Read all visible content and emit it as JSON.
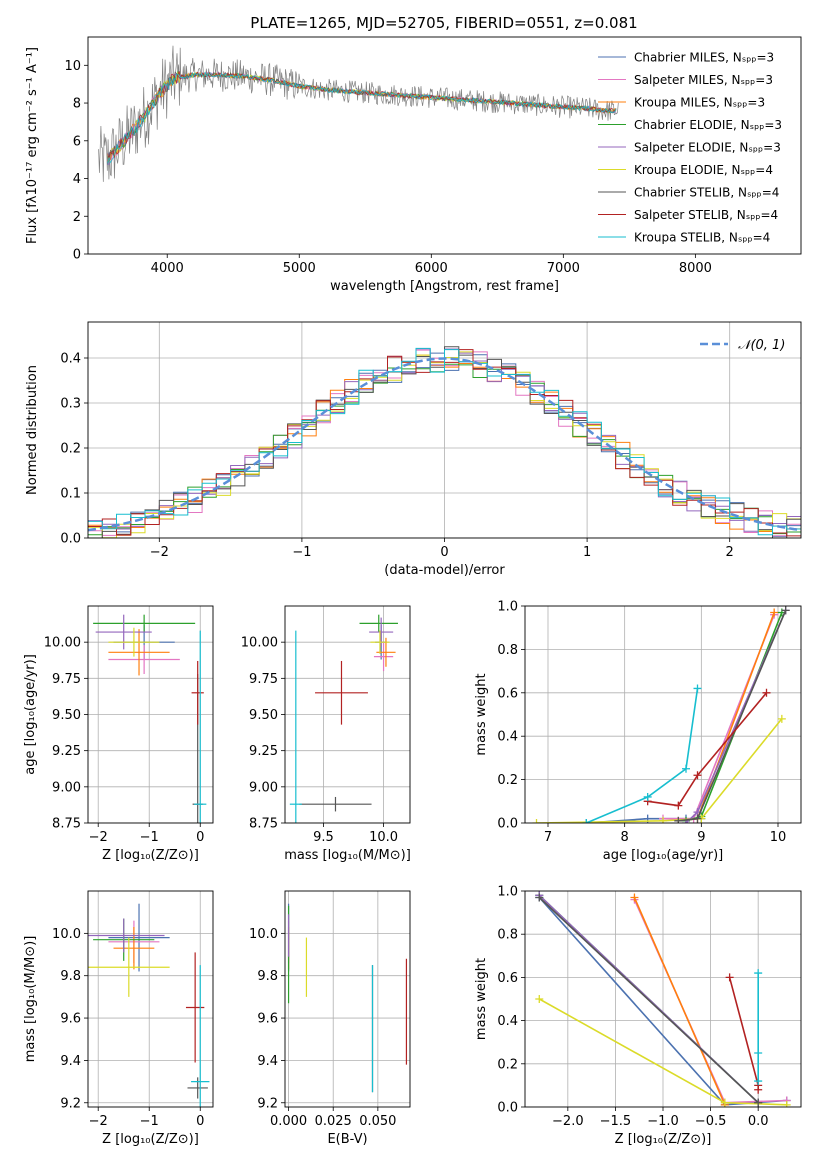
{
  "figure": {
    "title": "PLATE=1265, MJD=52705, FIBERID=0551, z=0.081"
  },
  "chart_data": [
    {
      "id": "spectrum",
      "type": "line",
      "xlabel": "wavelength [Angstrom, rest frame]",
      "ylabel": "Flux [fλ10⁻¹⁷ erg cm⁻² s⁻¹ A⁻¹]",
      "xlim": [
        3400,
        8800
      ],
      "ylim": [
        0,
        11.5
      ],
      "xticks": [
        4000,
        5000,
        6000,
        7000,
        8000
      ],
      "yticks": [
        0,
        2,
        4,
        6,
        8,
        10
      ],
      "grid": false,
      "legend_position": "right",
      "legend": [
        {
          "label": "Chabrier MILES, Nₛₚₚ=3",
          "color": "#4c72b0"
        },
        {
          "label": "Salpeter MILES, Nₛₚₚ=3",
          "color": "#e377c2"
        },
        {
          "label": "Kroupa MILES, Nₛₚₚ=3",
          "color": "#ff7f0e"
        },
        {
          "label": "Chabrier ELODIE, Nₛₚₚ=3",
          "color": "#2ca02c"
        },
        {
          "label": "Salpeter ELODIE, Nₛₚₚ=3",
          "color": "#9467bd"
        },
        {
          "label": "Kroupa ELODIE, Nₛₚₚ=4",
          "color": "#dbdb29"
        },
        {
          "label": "Chabrier STELIB, Nₛₚₚ=4",
          "color": "#555555"
        },
        {
          "label": "Salpeter STELIB, Nₛₚₚ=4",
          "color": "#b22222"
        },
        {
          "label": "Kroupa STELIB, Nₛₚₚ=4",
          "color": "#17becf"
        }
      ],
      "data_color": "#808080",
      "continuum": {
        "x": [
          3550,
          3650,
          3750,
          3850,
          3950,
          4050,
          4200,
          4400,
          4600,
          4800,
          5000,
          5200,
          5400,
          5600,
          5800,
          6000,
          6200,
          6400,
          6600,
          6800,
          7000,
          7200,
          7300,
          7400
        ],
        "y": [
          5.0,
          5.8,
          6.6,
          7.5,
          8.6,
          9.3,
          9.5,
          9.5,
          9.4,
          9.2,
          8.9,
          8.7,
          8.6,
          8.5,
          8.4,
          8.3,
          8.2,
          8.1,
          8.0,
          7.9,
          7.8,
          7.7,
          7.6,
          7.6
        ]
      },
      "data_range": [
        3480,
        7420
      ]
    },
    {
      "id": "residuals",
      "type": "histogram",
      "xlabel": "(data-model)/error",
      "ylabel": "Normed distribution",
      "xlim": [
        -2.5,
        2.5
      ],
      "ylim": [
        0,
        0.48
      ],
      "xticks": [
        -2,
        -1,
        0,
        1,
        2
      ],
      "yticks": [
        0.0,
        0.1,
        0.2,
        0.3,
        0.4
      ],
      "grid": true,
      "legend": [
        {
          "label": "𝒩(0, 1)",
          "color": "#5a8fd8"
        }
      ],
      "reference_curve": "normal pdf, mean 0, sd 1",
      "bin_width": 0.1
    },
    {
      "id": "age_vs_Z",
      "type": "scatter",
      "xlabel": "Z [log₁₀(Z/Z⊙)]",
      "ylabel": "age  [log₁₀(age/yr)]",
      "xlim": [
        -2.2,
        0.25
      ],
      "ylim": [
        8.75,
        10.25
      ],
      "xticks": [
        -2,
        -1,
        0
      ],
      "yticks": [
        8.75,
        9.0,
        9.25,
        9.5,
        9.75,
        10.0
      ],
      "grid": true,
      "points": [
        {
          "color": "#4c72b0",
          "x": -1.1,
          "y": 10.0,
          "xerr": 0.6,
          "yerr": 0.12
        },
        {
          "color": "#e377c2",
          "x": -1.1,
          "y": 9.88,
          "xerr": 0.7,
          "yerr": 0.1
        },
        {
          "color": "#ff7f0e",
          "x": -1.2,
          "y": 9.93,
          "xerr": 0.6,
          "yerr": 0.16
        },
        {
          "color": "#2ca02c",
          "x": -1.1,
          "y": 10.13,
          "xerr": 1.0,
          "yerr": 0.06
        },
        {
          "color": "#9467bd",
          "x": -1.5,
          "y": 10.07,
          "xerr": 0.55,
          "yerr": 0.12
        },
        {
          "color": "#dbdb29",
          "x": -1.3,
          "y": 10.0,
          "xerr": 0.5,
          "yerr": 0.1
        },
        {
          "color": "#555555",
          "x": -0.05,
          "y": 8.88,
          "xerr": 0.1,
          "yerr": 0.9
        },
        {
          "color": "#b22222",
          "x": -0.05,
          "y": 9.65,
          "xerr": 0.12,
          "yerr": 0.22
        },
        {
          "color": "#17becf",
          "x": 0.0,
          "y": 8.88,
          "xerr": 0.12,
          "yerr": 1.2
        }
      ]
    },
    {
      "id": "age_vs_mass",
      "type": "scatter",
      "xlabel": "mass [log₁₀(M/M⊙)]",
      "ylabel": "",
      "xlim": [
        9.18,
        10.22
      ],
      "ylim": [
        8.75,
        10.25
      ],
      "xticks": [
        9.5,
        10.0
      ],
      "yticks": [
        8.75,
        9.0,
        9.25,
        9.5,
        9.75,
        10.0
      ],
      "grid": true,
      "points": [
        {
          "color": "#4c72b0",
          "x": 9.98,
          "y": 10.0,
          "xerr": 0.05,
          "yerr": 0.12
        },
        {
          "color": "#e377c2",
          "x": 10.0,
          "y": 9.9,
          "xerr": 0.08,
          "yerr": 0.1
        },
        {
          "color": "#ff7f0e",
          "x": 10.02,
          "y": 9.93,
          "xerr": 0.08,
          "yerr": 0.1
        },
        {
          "color": "#2ca02c",
          "x": 9.96,
          "y": 10.13,
          "xerr": 0.16,
          "yerr": 0.06
        },
        {
          "color": "#9467bd",
          "x": 9.98,
          "y": 10.07,
          "xerr": 0.1,
          "yerr": 0.1
        },
        {
          "color": "#dbdb29",
          "x": 9.97,
          "y": 10.0,
          "xerr": 0.08,
          "yerr": 0.08
        },
        {
          "color": "#555555",
          "x": 9.6,
          "y": 8.88,
          "xerr": 0.3,
          "yerr": 0.05
        },
        {
          "color": "#b22222",
          "x": 9.65,
          "y": 9.65,
          "xerr": 0.22,
          "yerr": 0.22
        },
        {
          "color": "#17becf",
          "x": 9.27,
          "y": 8.88,
          "xerr": 0.05,
          "yerr": 1.2
        }
      ]
    },
    {
      "id": "mass_weight_vs_age",
      "type": "line",
      "xlabel": "age  [log₁₀(age/yr)]",
      "ylabel": "mass weight",
      "xlim": [
        6.7,
        10.3
      ],
      "ylim": [
        0,
        1.0
      ],
      "xticks": [
        7,
        8,
        9,
        10
      ],
      "yticks": [
        0.0,
        0.2,
        0.4,
        0.6,
        0.8,
        1.0
      ],
      "grid": true,
      "series": [
        {
          "color": "#4c72b0",
          "x": [
            7.5,
            8.3,
            8.8,
            9.0
          ],
          "y": [
            0.0,
            0.02,
            0.02,
            0.02
          ]
        },
        {
          "color": "#e377c2",
          "x": [
            8.5,
            8.9,
            9.95
          ],
          "y": [
            0.02,
            0.02,
            0.96
          ]
        },
        {
          "color": "#ff7f0e",
          "x": [
            8.7,
            8.95,
            9.95
          ],
          "y": [
            0.01,
            0.02,
            0.97
          ]
        },
        {
          "color": "#2ca02c",
          "x": [
            8.8,
            9.0,
            10.05
          ],
          "y": [
            0.01,
            0.03,
            0.97
          ]
        },
        {
          "color": "#9467bd",
          "x": [
            8.8,
            8.95,
            10.1
          ],
          "y": [
            0.0,
            0.05,
            0.98
          ]
        },
        {
          "color": "#dbdb29",
          "x": [
            6.85,
            8.5,
            9.0,
            10.05
          ],
          "y": [
            0.0,
            0.01,
            0.02,
            0.48
          ]
        },
        {
          "color": "#555555",
          "x": [
            8.7,
            8.95,
            10.1
          ],
          "y": [
            0.01,
            0.02,
            0.98
          ]
        },
        {
          "color": "#b22222",
          "x": [
            8.3,
            8.7,
            8.95,
            9.85
          ],
          "y": [
            0.1,
            0.08,
            0.22,
            0.6
          ]
        },
        {
          "color": "#17becf",
          "x": [
            7.5,
            8.3,
            8.8,
            8.95
          ],
          "y": [
            0.0,
            0.12,
            0.25,
            0.62
          ]
        }
      ]
    },
    {
      "id": "mass_vs_Z",
      "type": "scatter",
      "xlabel": "Z [log₁₀(Z/Z⊙)]",
      "ylabel": "mass [log₁₀(M/M⊙)]",
      "xlim": [
        -2.2,
        0.25
      ],
      "ylim": [
        9.18,
        10.2
      ],
      "xticks": [
        -2,
        -1,
        0
      ],
      "yticks": [
        9.2,
        9.4,
        9.6,
        9.8,
        10.0
      ],
      "grid": true,
      "points": [
        {
          "color": "#4c72b0",
          "x": -1.2,
          "y": 9.98,
          "xerr": 0.6,
          "yerr": 0.16
        },
        {
          "color": "#e377c2",
          "x": -1.3,
          "y": 9.96,
          "xerr": 0.5,
          "yerr": 0.1
        },
        {
          "color": "#ff7f0e",
          "x": -1.3,
          "y": 9.93,
          "xerr": 0.4,
          "yerr": 0.1
        },
        {
          "color": "#2ca02c",
          "x": -1.5,
          "y": 9.97,
          "xerr": 0.6,
          "yerr": 0.1
        },
        {
          "color": "#9467bd",
          "x": -1.5,
          "y": 9.99,
          "xerr": 0.8,
          "yerr": 0.08
        },
        {
          "color": "#dbdb29",
          "x": -1.4,
          "y": 9.84,
          "xerr": 0.8,
          "yerr": 0.14
        },
        {
          "color": "#555555",
          "x": -0.05,
          "y": 9.27,
          "xerr": 0.2,
          "yerr": 0.05
        },
        {
          "color": "#b22222",
          "x": -0.1,
          "y": 9.65,
          "xerr": 0.18,
          "yerr": 0.26
        },
        {
          "color": "#17becf",
          "x": 0.0,
          "y": 9.3,
          "xerr": 0.18,
          "yerr": 0.55
        }
      ]
    },
    {
      "id": "mass_vs_EBV",
      "type": "scatter",
      "xlabel": "E(B-V)",
      "ylabel": "",
      "xlim": [
        -0.002,
        0.068
      ],
      "ylim": [
        9.18,
        10.2
      ],
      "xticks": [
        0.0,
        0.025,
        0.05
      ],
      "xticklabels": [
        "0.000",
        "0.025",
        "0.050"
      ],
      "yticks": [
        9.2,
        9.4,
        9.6,
        9.8,
        10.0
      ],
      "grid": true,
      "points": [
        {
          "color": "#4c72b0",
          "x": 0.0,
          "y": 9.98,
          "xerr": 0,
          "yerr": 0.16
        },
        {
          "color": "#e377c2",
          "x": 0.0,
          "y": 9.96,
          "xerr": 0,
          "yerr": 0.1
        },
        {
          "color": "#ff7f0e",
          "x": 0.0,
          "y": 9.93,
          "xerr": 0,
          "yerr": 0.1
        },
        {
          "color": "#2ca02c",
          "x": 0.0,
          "y": 9.9,
          "xerr": 0,
          "yerr": 0.23
        },
        {
          "color": "#9467bd",
          "x": 0.0,
          "y": 9.99,
          "xerr": 0,
          "yerr": 0.1
        },
        {
          "color": "#dbdb29",
          "x": 0.01,
          "y": 9.84,
          "xerr": 0,
          "yerr": 0.14
        },
        {
          "color": "#555555",
          "x": 0.047,
          "y": 9.55,
          "xerr": 0,
          "yerr": 0.3
        },
        {
          "color": "#b22222",
          "x": 0.066,
          "y": 9.63,
          "xerr": 0,
          "yerr": 0.25
        },
        {
          "color": "#17becf",
          "x": 0.047,
          "y": 9.55,
          "xerr": 0,
          "yerr": 0.3
        }
      ]
    },
    {
      "id": "mass_weight_vs_Z",
      "type": "line",
      "xlabel": "Z [log₁₀(Z/Z⊙)]",
      "ylabel": "mass weight",
      "xlim": [
        -2.45,
        0.45
      ],
      "ylim": [
        0,
        1.0
      ],
      "xticks": [
        -2.0,
        -1.5,
        -1.0,
        -0.5,
        0.0
      ],
      "yticks": [
        0.0,
        0.2,
        0.4,
        0.6,
        0.8,
        1.0
      ],
      "grid": true,
      "series": [
        {
          "color": "#4c72b0",
          "x": [
            -2.3,
            -0.35,
            0.3
          ],
          "y": [
            0.97,
            0.01,
            0.03
          ]
        },
        {
          "color": "#e377c2",
          "x": [
            -1.3,
            -0.35,
            0.3
          ],
          "y": [
            0.96,
            0.02,
            0.03
          ]
        },
        {
          "color": "#ff7f0e",
          "x": [
            -1.3,
            -0.35
          ],
          "y": [
            0.97,
            0.01
          ]
        },
        {
          "color": "#2ca02c",
          "x": [
            -2.3,
            0.0
          ],
          "y": [
            0.98,
            0.02
          ]
        },
        {
          "color": "#9467bd",
          "x": [
            -2.3,
            0.0
          ],
          "y": [
            0.98,
            0.02
          ]
        },
        {
          "color": "#dbdb29",
          "x": [
            -2.3,
            -0.35,
            0.3
          ],
          "y": [
            0.5,
            0.02,
            0.01
          ]
        },
        {
          "color": "#555555",
          "x": [
            -2.3,
            0.0
          ],
          "y": [
            0.97,
            0.02
          ]
        },
        {
          "color": "#b22222",
          "x": [
            -0.3,
            0.0,
            0.0
          ],
          "y": [
            0.6,
            0.1,
            0.08
          ]
        },
        {
          "color": "#17becf",
          "x": [
            0.0,
            0.0,
            0.0
          ],
          "y": [
            0.62,
            0.25,
            0.12
          ]
        }
      ]
    }
  ]
}
